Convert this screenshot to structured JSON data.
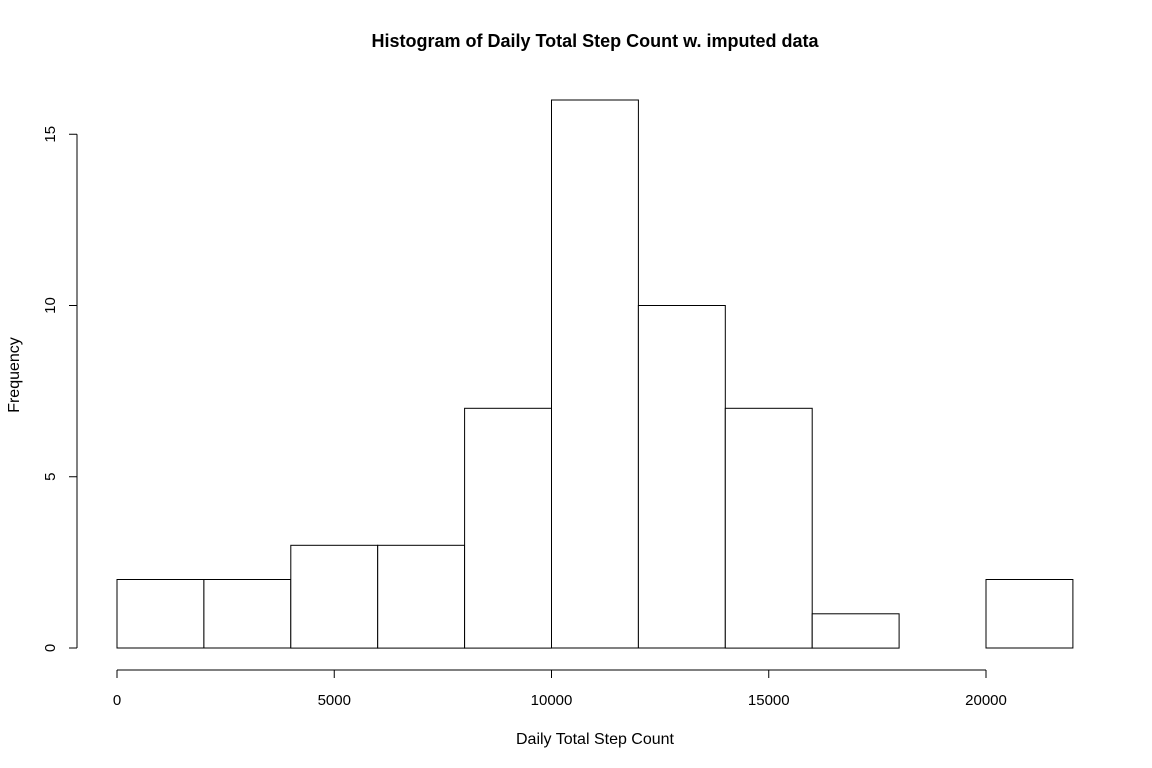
{
  "chart_data": {
    "type": "bar",
    "title": "Histogram of Daily Total Step Count w. imputed data",
    "xlabel": "Daily Total Step Count",
    "ylabel": "Frequency",
    "bins": [
      {
        "start": 0,
        "end": 2000,
        "count": 2
      },
      {
        "start": 2000,
        "end": 4000,
        "count": 2
      },
      {
        "start": 4000,
        "end": 6000,
        "count": 3
      },
      {
        "start": 6000,
        "end": 8000,
        "count": 3
      },
      {
        "start": 8000,
        "end": 10000,
        "count": 7
      },
      {
        "start": 10000,
        "end": 12000,
        "count": 16
      },
      {
        "start": 12000,
        "end": 14000,
        "count": 10
      },
      {
        "start": 14000,
        "end": 16000,
        "count": 7
      },
      {
        "start": 16000,
        "end": 18000,
        "count": 1
      },
      {
        "start": 18000,
        "end": 20000,
        "count": 0
      },
      {
        "start": 20000,
        "end": 22000,
        "count": 2
      }
    ],
    "xticks": [
      "0",
      "5000",
      "10000",
      "15000",
      "20000"
    ],
    "yticks": [
      "0",
      "5",
      "10",
      "15"
    ],
    "xlim": [
      0,
      22000
    ],
    "ylim": [
      0,
      16
    ],
    "grid": false,
    "legend": "none"
  }
}
